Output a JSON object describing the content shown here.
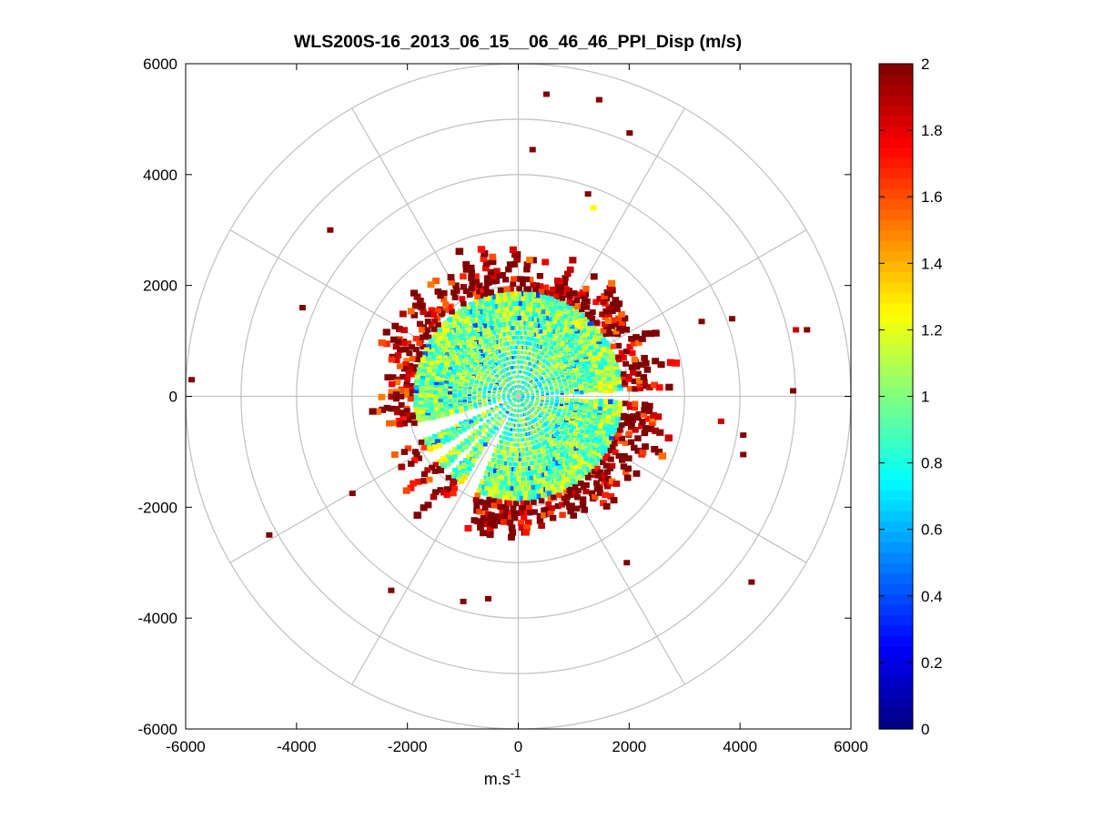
{
  "chart_data": [
    {
      "type": "scatter",
      "subtype": "polar-ppi-scan",
      "title": "WLS200S-16_2013_06_15__06_46_46_PPI_Disp (m/s)",
      "xlabel_base": "m.s",
      "xlabel_exp": "-1",
      "ylabel": "",
      "xlim": [
        -6000,
        6000
      ],
      "ylim": [
        -6000,
        6000
      ],
      "x_ticks": [
        -6000,
        -4000,
        -2000,
        0,
        2000,
        4000,
        6000
      ],
      "y_ticks": [
        -6000,
        -4000,
        -2000,
        0,
        2000,
        4000,
        6000
      ],
      "x_tick_labels": [
        "-6000",
        "-4000",
        "-2000",
        "0",
        "2000",
        "4000",
        "6000"
      ],
      "y_tick_labels": [
        "-6000",
        "-4000",
        "-2000",
        "0",
        "2000",
        "4000",
        "6000"
      ],
      "polar_grid": {
        "rings": [
          1000,
          2000,
          3000,
          4000,
          5000,
          6000
        ],
        "spoke_angles_deg": [
          0,
          30,
          60,
          90,
          120,
          150,
          180,
          210,
          240,
          270,
          300,
          330
        ]
      },
      "color_scale": {
        "range": [
          0,
          2
        ],
        "colormap": "jet",
        "ticks": [
          0,
          0.2,
          0.4,
          0.6,
          0.8,
          1,
          1.2,
          1.4,
          1.6,
          1.8,
          2
        ],
        "tick_labels": [
          "0",
          "0.2",
          "0.4",
          "0.6",
          "0.8",
          "1",
          "1.2",
          "1.4",
          "1.6",
          "1.8",
          "2"
        ]
      },
      "field": {
        "approx_radius_dense_m": 2100,
        "approx_radius_fringe_m": 3000,
        "value_near_center": 0.9,
        "value_at_fringe": 2.0,
        "missing_sectors_deg": [
          [
            -2,
            2
          ],
          [
            196,
            204
          ],
          [
            214,
            218
          ],
          [
            238,
            246
          ],
          [
            226,
            228
          ]
        ]
      },
      "outlier_points": [
        {
          "x": 500,
          "y": 5450,
          "v": 2.0
        },
        {
          "x": 1450,
          "y": 5350,
          "v": 2.0
        },
        {
          "x": 2000,
          "y": 4750,
          "v": 2.0
        },
        {
          "x": 250,
          "y": 4450,
          "v": 2.0
        },
        {
          "x": 1250,
          "y": 3650,
          "v": 2.0
        },
        {
          "x": 1350,
          "y": 3400,
          "v": 1.25
        },
        {
          "x": 5000,
          "y": 1200,
          "v": 1.85
        },
        {
          "x": 5200,
          "y": 1200,
          "v": 2.0
        },
        {
          "x": 3850,
          "y": 1400,
          "v": 2.0
        },
        {
          "x": 3650,
          "y": -450,
          "v": 1.85
        },
        {
          "x": 4950,
          "y": 100,
          "v": 2.0
        },
        {
          "x": 4050,
          "y": -1050,
          "v": 2.0
        },
        {
          "x": 4200,
          "y": -3350,
          "v": 2.0
        },
        {
          "x": 1950,
          "y": -3000,
          "v": 2.0
        },
        {
          "x": -5900,
          "y": 300,
          "v": 2.0
        },
        {
          "x": -4500,
          "y": -2500,
          "v": 2.0
        },
        {
          "x": -3900,
          "y": 1600,
          "v": 2.0
        },
        {
          "x": -3400,
          "y": 3000,
          "v": 2.0
        },
        {
          "x": -2300,
          "y": -3500,
          "v": 2.0
        },
        {
          "x": -1000,
          "y": -3700,
          "v": 2.0
        },
        {
          "x": -550,
          "y": -3650,
          "v": 2.0
        },
        {
          "x": -3000,
          "y": -1750,
          "v": 2.0
        },
        {
          "x": 3300,
          "y": 1350,
          "v": 2.0
        },
        {
          "x": 4050,
          "y": -700,
          "v": 2.0
        }
      ]
    }
  ]
}
